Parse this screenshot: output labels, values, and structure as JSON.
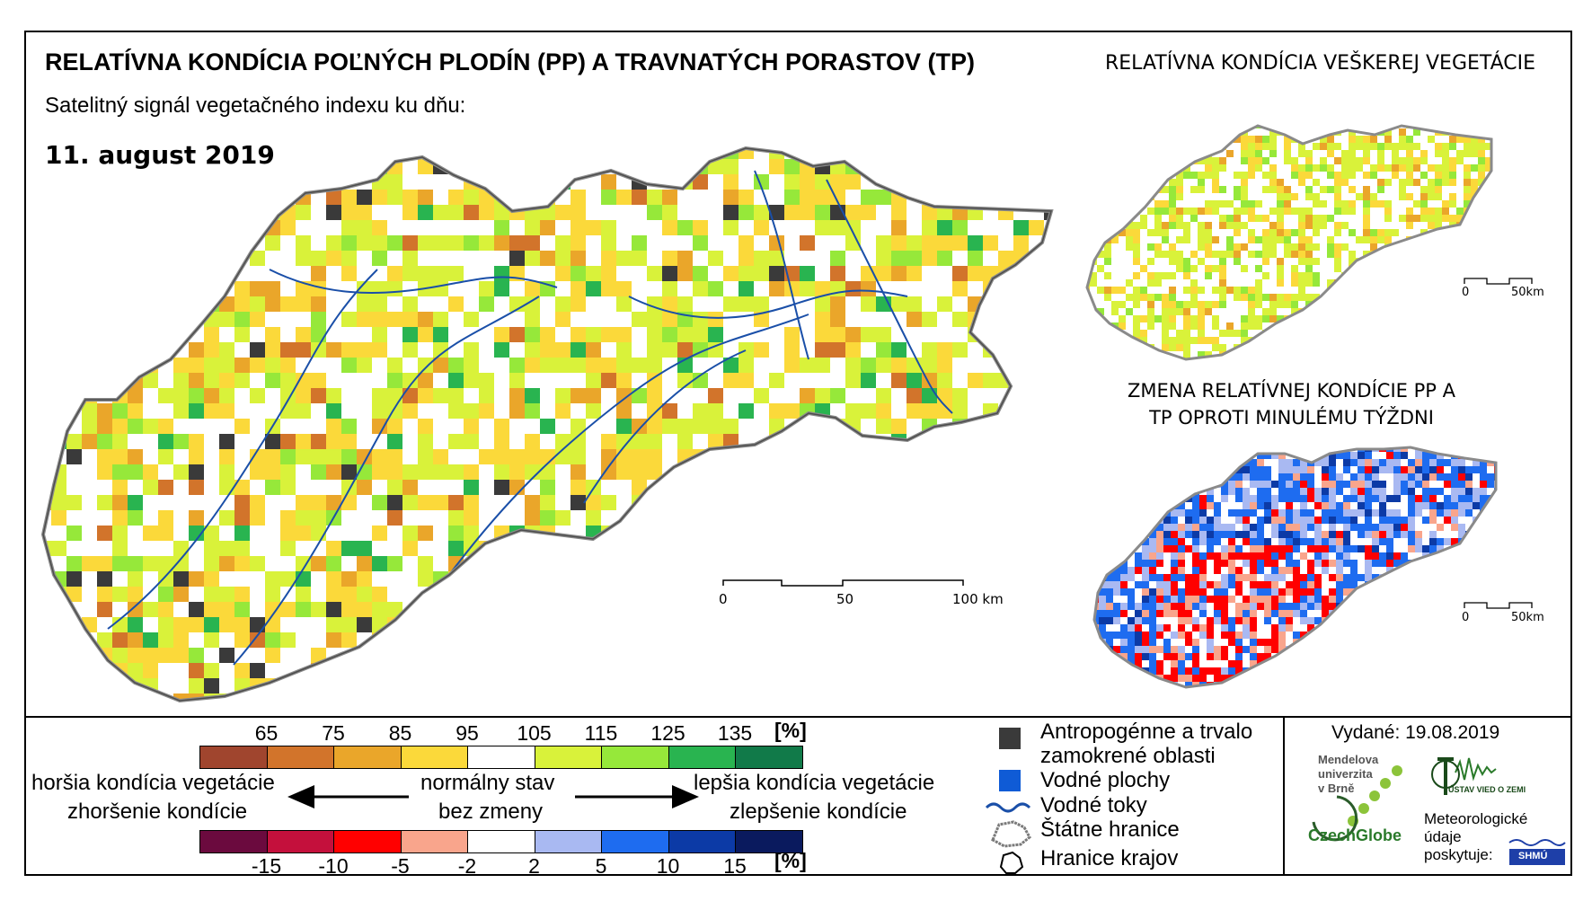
{
  "header": {
    "title": "RELATÍVNA KONDÍCIA POĽNÝCH PLODÍN (PP) A TRAVNATÝCH PORASTOV (TP)",
    "subtitle": "Satelitný signál vegetačného indexu ku dňu:",
    "date": "11. august 2019"
  },
  "side_maps": {
    "top_title": "RELATÍVNA KONDÍCIA VEŠKEREJ VEGETÁCIE",
    "bottom_title": "ZMENA RELATÍVNEJ KONDÍCIE PP A TP OPROTI MINULÉMU TÝŽDNI"
  },
  "scalebars": {
    "main": {
      "l0": "0",
      "l1": "50",
      "l2": "100 km"
    },
    "small": {
      "l0": "0",
      "l1": "50km"
    }
  },
  "legend": {
    "condition_ticks": [
      "65",
      "75",
      "85",
      "95",
      "105",
      "115",
      "125",
      "135"
    ],
    "condition_unit": "[%]",
    "condition_colors": [
      "#a0452e",
      "#d2742b",
      "#eaa62a",
      "#fbd93a",
      "#ffffff",
      "#d9f23a",
      "#96e83a",
      "#29b450",
      "#117a49"
    ],
    "change_ticks": [
      "-15",
      "-10",
      "-5",
      "-2",
      "2",
      "5",
      "10",
      "15"
    ],
    "change_unit": "[%]",
    "change_colors": [
      "#6b0a3e",
      "#c4103c",
      "#ff0000",
      "#f9a58c",
      "#ffffff",
      "#a9b9f2",
      "#1e6cf0",
      "#0c3aa6",
      "#0a1a5e"
    ],
    "worse_line1": "horšia kondícia vegetácie",
    "worse_line2": "zhoršenie kondície",
    "normal_line1": "normálny stav",
    "normal_line2": "bez zmeny",
    "better_line1": "lepšia kondícia vegetácie",
    "better_line2": "zlepšenie kondície",
    "symbols": [
      {
        "icon": "dark-square-icon",
        "color": "#3a3a3a",
        "label1": "Antropogénne a trvalo",
        "label2": "zamokrené oblasti"
      },
      {
        "icon": "blue-square-icon",
        "color": "#0f5bd6",
        "label1": "Vodné plochy"
      },
      {
        "icon": "river-line-icon",
        "color": "#1a4fa8",
        "label1": "Vodné toky"
      },
      {
        "icon": "border-outline-icon",
        "color": "#7a7a7a",
        "label1": "Štátne hranice"
      },
      {
        "icon": "region-outline-icon",
        "color": "#000000",
        "label1": "Hranice krajov"
      }
    ]
  },
  "issue": {
    "label": "Vydané: 19.08.2019",
    "mendel": [
      "Mendelova",
      "univerzita",
      "v Brně"
    ],
    "czechglobe": "CzechGlobe",
    "ustav": "ÚSTAV VIED O ZEMI",
    "meteo": [
      "Meteorologické",
      "údaje",
      "poskytuje:"
    ],
    "shmu": "SHMÚ"
  }
}
